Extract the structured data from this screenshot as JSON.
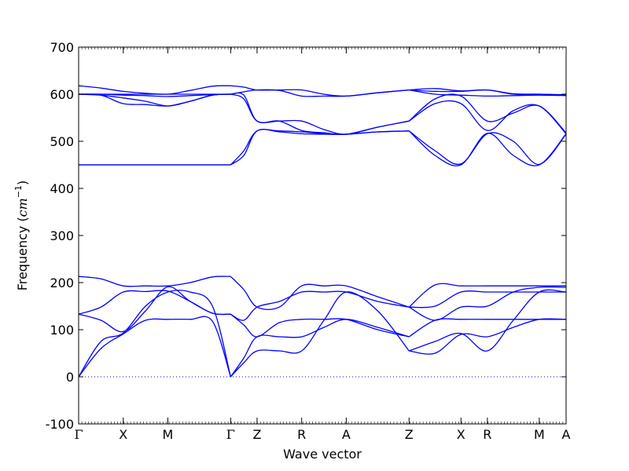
{
  "chart_data": {
    "type": "line",
    "title": "",
    "xlabel": "Wave vector",
    "ylabel": "Frequency ($cm^{-1}$)",
    "ylabel_parts": {
      "text": "Frequency (",
      "unit_base": "cm",
      "unit_exp": "−1",
      "close": ")"
    },
    "ylim": [
      -100,
      700
    ],
    "yticks": [
      -100,
      0,
      100,
      200,
      300,
      400,
      500,
      600,
      700
    ],
    "xlim": [
      0,
      10.71
    ],
    "high_symmetry_points": [
      {
        "label": "Γ",
        "x": 0
      },
      {
        "label": "X",
        "x": 0.98
      },
      {
        "label": "M",
        "x": 1.96
      },
      {
        "label": "Γ",
        "x": 3.34
      },
      {
        "label": "Z",
        "x": 3.92
      },
      {
        "label": "R",
        "x": 4.9
      },
      {
        "label": "A",
        "x": 5.88
      },
      {
        "label": "Z",
        "x": 7.26
      },
      {
        "label": "X",
        "x": 8.4
      },
      {
        "label": "R",
        "x": 8.98
      },
      {
        "label": "M",
        "x": 10.12
      },
      {
        "label": "A",
        "x": 10.71
      }
    ],
    "zero_line": {
      "y": 0,
      "style": "dotted",
      "color": "#0000ff"
    },
    "line_color": "#0000ff",
    "series": [
      {
        "points": [
          [
            0,
            0
          ],
          [
            0.49,
            60
          ],
          [
            0.98,
            91
          ],
          [
            1.47,
            120
          ],
          [
            1.96,
            122
          ],
          [
            2.45,
            122
          ],
          [
            2.94,
            118
          ],
          [
            3.34,
            0
          ]
        ]
      },
      {
        "points": [
          [
            0,
            0
          ],
          [
            0.49,
            75
          ],
          [
            0.98,
            93
          ],
          [
            1.47,
            150
          ],
          [
            1.96,
            180
          ],
          [
            2.45,
            180
          ],
          [
            2.94,
            150
          ],
          [
            3.34,
            0
          ]
        ]
      },
      {
        "points": [
          [
            0,
            133
          ],
          [
            0.49,
            148
          ],
          [
            0.98,
            180
          ],
          [
            1.47,
            181
          ],
          [
            1.96,
            182
          ],
          [
            2.45,
            160
          ],
          [
            2.94,
            135
          ],
          [
            3.34,
            133
          ]
        ]
      },
      {
        "points": [
          [
            0,
            133
          ],
          [
            0.49,
            120
          ],
          [
            0.98,
            96
          ],
          [
            1.47,
            140
          ],
          [
            1.96,
            191
          ],
          [
            2.45,
            160
          ],
          [
            2.94,
            135
          ],
          [
            3.34,
            133
          ]
        ]
      },
      {
        "points": [
          [
            0,
            213
          ],
          [
            0.49,
            208
          ],
          [
            0.98,
            193
          ],
          [
            1.47,
            193
          ],
          [
            1.96,
            193
          ],
          [
            2.45,
            200
          ],
          [
            2.94,
            212
          ],
          [
            3.34,
            213
          ]
        ]
      },
      {
        "points": [
          [
            0,
            450
          ],
          [
            0.98,
            450
          ],
          [
            1.96,
            450
          ],
          [
            2.94,
            450
          ],
          [
            3.34,
            450
          ]
        ]
      },
      {
        "points": [
          [
            0,
            450
          ],
          [
            0.98,
            450
          ],
          [
            1.96,
            450
          ],
          [
            2.94,
            450
          ],
          [
            3.34,
            450
          ]
        ]
      },
      {
        "points": [
          [
            0,
            600
          ],
          [
            0.49,
            598
          ],
          [
            0.98,
            580
          ],
          [
            1.47,
            578
          ],
          [
            1.96,
            575
          ],
          [
            2.45,
            585
          ],
          [
            2.94,
            598
          ],
          [
            3.34,
            600
          ]
        ]
      },
      {
        "points": [
          [
            0,
            600
          ],
          [
            0.49,
            598
          ],
          [
            0.98,
            592
          ],
          [
            1.47,
            585
          ],
          [
            1.96,
            575
          ],
          [
            2.45,
            585
          ],
          [
            2.94,
            598
          ],
          [
            3.34,
            600
          ]
        ]
      },
      {
        "points": [
          [
            0,
            600
          ],
          [
            0.49,
            600
          ],
          [
            0.98,
            598
          ],
          [
            1.47,
            597
          ],
          [
            1.96,
            595
          ],
          [
            2.45,
            597
          ],
          [
            2.94,
            599
          ],
          [
            3.34,
            600
          ]
        ]
      },
      {
        "points": [
          [
            0,
            600
          ],
          [
            0.49,
            600
          ],
          [
            0.98,
            600
          ],
          [
            1.47,
            600
          ],
          [
            1.96,
            600
          ],
          [
            2.45,
            600
          ],
          [
            2.94,
            600
          ],
          [
            3.34,
            600
          ]
        ]
      },
      {
        "points": [
          [
            0,
            618
          ],
          [
            0.49,
            613
          ],
          [
            0.98,
            606
          ],
          [
            1.47,
            602
          ],
          [
            1.96,
            600
          ],
          [
            2.45,
            608
          ],
          [
            2.94,
            617
          ],
          [
            3.34,
            618
          ]
        ]
      },
      {
        "points": [
          [
            3.34,
            0
          ],
          [
            3.63,
            30
          ],
          [
            3.92,
            55
          ],
          [
            4.41,
            55
          ],
          [
            4.9,
            55
          ],
          [
            5.39,
            120
          ],
          [
            5.88,
            180
          ],
          [
            6.57,
            140
          ],
          [
            7.26,
            55
          ]
        ]
      },
      {
        "points": [
          [
            3.34,
            0
          ],
          [
            3.63,
            40
          ],
          [
            3.92,
            85
          ],
          [
            4.41,
            85
          ],
          [
            4.9,
            85
          ],
          [
            5.39,
            105
          ],
          [
            5.88,
            122
          ],
          [
            6.57,
            105
          ],
          [
            7.26,
            85
          ]
        ]
      },
      {
        "points": [
          [
            3.34,
            133
          ],
          [
            3.63,
            110
          ],
          [
            3.92,
            85
          ],
          [
            4.41,
            115
          ],
          [
            4.9,
            122
          ],
          [
            5.39,
            122
          ],
          [
            5.88,
            122
          ],
          [
            6.57,
            100
          ],
          [
            7.26,
            85
          ]
        ]
      },
      {
        "points": [
          [
            3.34,
            133
          ],
          [
            3.63,
            120
          ],
          [
            3.92,
            148
          ],
          [
            4.41,
            160
          ],
          [
            4.9,
            180
          ],
          [
            5.39,
            180
          ],
          [
            5.88,
            180
          ],
          [
            6.57,
            160
          ],
          [
            7.26,
            148
          ]
        ]
      },
      {
        "points": [
          [
            3.34,
            213
          ],
          [
            3.63,
            185
          ],
          [
            3.92,
            148
          ],
          [
            4.41,
            148
          ],
          [
            4.9,
            193
          ],
          [
            5.39,
            193
          ],
          [
            5.88,
            193
          ],
          [
            6.57,
            170
          ],
          [
            7.26,
            148
          ]
        ]
      },
      {
        "points": [
          [
            3.34,
            450
          ],
          [
            3.63,
            470
          ],
          [
            3.92,
            522
          ],
          [
            4.41,
            520
          ],
          [
            4.9,
            516
          ],
          [
            5.39,
            515
          ],
          [
            5.88,
            515
          ],
          [
            6.57,
            520
          ],
          [
            7.26,
            522
          ]
        ]
      },
      {
        "points": [
          [
            3.34,
            450
          ],
          [
            3.63,
            480
          ],
          [
            3.92,
            522
          ],
          [
            4.41,
            522
          ],
          [
            4.9,
            520
          ],
          [
            5.39,
            516
          ],
          [
            5.88,
            515
          ],
          [
            6.57,
            520
          ],
          [
            7.26,
            522
          ]
        ]
      },
      {
        "points": [
          [
            3.34,
            600
          ],
          [
            3.63,
            590
          ],
          [
            3.92,
            543
          ],
          [
            4.41,
            543
          ],
          [
            4.9,
            543
          ],
          [
            5.39,
            525
          ],
          [
            5.88,
            515
          ],
          [
            6.57,
            530
          ],
          [
            7.26,
            543
          ]
        ]
      },
      {
        "points": [
          [
            3.34,
            600
          ],
          [
            3.63,
            598
          ],
          [
            3.92,
            543
          ],
          [
            4.41,
            543
          ],
          [
            4.9,
            523
          ],
          [
            5.39,
            518
          ],
          [
            5.88,
            515
          ],
          [
            6.57,
            530
          ],
          [
            7.26,
            543
          ]
        ]
      },
      {
        "points": [
          [
            3.34,
            600
          ],
          [
            3.63,
            605
          ],
          [
            3.92,
            609
          ],
          [
            4.41,
            608
          ],
          [
            4.9,
            596
          ],
          [
            5.39,
            596
          ],
          [
            5.88,
            596
          ],
          [
            6.57,
            603
          ],
          [
            7.26,
            609
          ]
        ]
      },
      {
        "points": [
          [
            3.34,
            618
          ],
          [
            3.63,
            615
          ],
          [
            3.92,
            609
          ],
          [
            4.41,
            609
          ],
          [
            4.9,
            609
          ],
          [
            5.39,
            600
          ],
          [
            5.88,
            596
          ],
          [
            6.57,
            603
          ],
          [
            7.26,
            609
          ]
        ]
      },
      {
        "points": [
          [
            7.26,
            55
          ],
          [
            7.83,
            75
          ],
          [
            8.4,
            92
          ],
          [
            8.98,
            55
          ],
          [
            9.55,
            120
          ],
          [
            10.12,
            180
          ],
          [
            10.71,
            180
          ]
        ]
      },
      {
        "points": [
          [
            7.26,
            55
          ],
          [
            7.83,
            50
          ],
          [
            8.4,
            90
          ],
          [
            8.98,
            85
          ],
          [
            9.55,
            105
          ],
          [
            10.12,
            122
          ],
          [
            10.71,
            122
          ]
        ]
      },
      {
        "points": [
          [
            7.26,
            85
          ],
          [
            7.83,
            120
          ],
          [
            8.4,
            122
          ],
          [
            8.98,
            122
          ],
          [
            9.55,
            122
          ],
          [
            10.12,
            122
          ],
          [
            10.71,
            122
          ]
        ]
      },
      {
        "points": [
          [
            7.26,
            148
          ],
          [
            7.83,
            120
          ],
          [
            8.4,
            148
          ],
          [
            8.98,
            150
          ],
          [
            9.55,
            180
          ],
          [
            10.12,
            190
          ],
          [
            10.71,
            190
          ]
        ]
      },
      {
        "points": [
          [
            7.26,
            148
          ],
          [
            7.83,
            150
          ],
          [
            8.4,
            180
          ],
          [
            8.98,
            180
          ],
          [
            9.55,
            180
          ],
          [
            10.12,
            180
          ],
          [
            10.71,
            180
          ]
        ]
      },
      {
        "points": [
          [
            7.26,
            148
          ],
          [
            7.83,
            195
          ],
          [
            8.4,
            193
          ],
          [
            8.98,
            193
          ],
          [
            9.55,
            193
          ],
          [
            10.12,
            193
          ],
          [
            10.71,
            193
          ]
        ]
      },
      {
        "points": [
          [
            7.26,
            522
          ],
          [
            7.83,
            470
          ],
          [
            8.4,
            450
          ],
          [
            8.98,
            517
          ],
          [
            9.55,
            470
          ],
          [
            10.12,
            450
          ],
          [
            10.71,
            516
          ]
        ]
      },
      {
        "points": [
          [
            7.26,
            522
          ],
          [
            7.83,
            480
          ],
          [
            8.4,
            452
          ],
          [
            8.98,
            516
          ],
          [
            9.55,
            500
          ],
          [
            10.12,
            451
          ],
          [
            10.71,
            515
          ]
        ]
      },
      {
        "points": [
          [
            7.26,
            543
          ],
          [
            7.83,
            580
          ],
          [
            8.4,
            580
          ],
          [
            8.98,
            523
          ],
          [
            9.55,
            565
          ],
          [
            10.12,
            575
          ],
          [
            10.71,
            516
          ]
        ]
      },
      {
        "points": [
          [
            7.26,
            543
          ],
          [
            7.83,
            590
          ],
          [
            8.4,
            596
          ],
          [
            8.98,
            543
          ],
          [
            9.55,
            560
          ],
          [
            10.12,
            575
          ],
          [
            10.71,
            518
          ]
        ]
      },
      {
        "points": [
          [
            7.26,
            609
          ],
          [
            7.83,
            600
          ],
          [
            8.4,
            598
          ],
          [
            8.98,
            596
          ],
          [
            9.55,
            597
          ],
          [
            10.12,
            598
          ],
          [
            10.71,
            597
          ]
        ]
      },
      {
        "points": [
          [
            7.26,
            609
          ],
          [
            7.83,
            606
          ],
          [
            8.4,
            606
          ],
          [
            8.98,
            609
          ],
          [
            9.55,
            601
          ],
          [
            10.12,
            600
          ],
          [
            10.71,
            599
          ]
        ]
      },
      {
        "points": [
          [
            7.26,
            609
          ],
          [
            7.83,
            612
          ],
          [
            8.4,
            607
          ],
          [
            8.98,
            609
          ],
          [
            9.55,
            600
          ],
          [
            10.12,
            600
          ],
          [
            10.71,
            598
          ]
        ]
      }
    ]
  }
}
